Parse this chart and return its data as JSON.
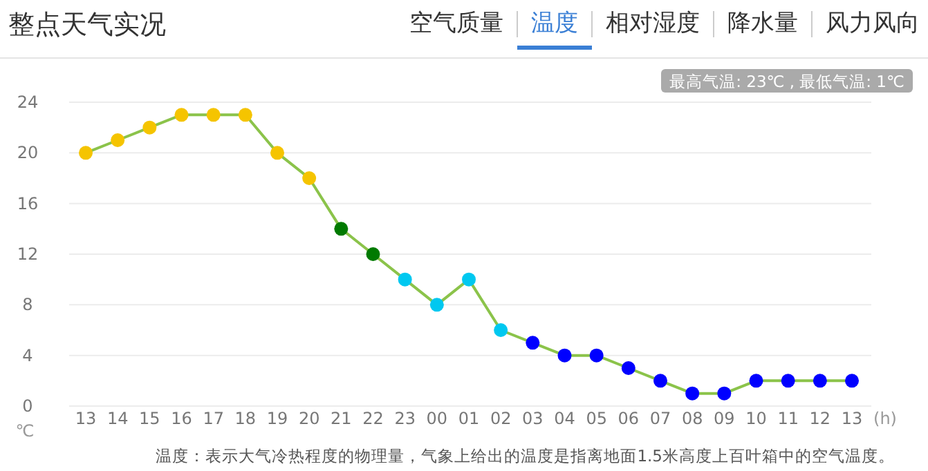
{
  "chart_data": {
    "type": "line",
    "title": "整点天气实况",
    "categories": [
      "13",
      "14",
      "15",
      "16",
      "17",
      "18",
      "19",
      "20",
      "21",
      "22",
      "23",
      "00",
      "01",
      "02",
      "03",
      "04",
      "05",
      "06",
      "07",
      "08",
      "09",
      "10",
      "11",
      "12",
      "13"
    ],
    "series": [
      {
        "color": "#8bc34a",
        "values": [
          20,
          21,
          22,
          23,
          23,
          23,
          20,
          18,
          14,
          12,
          10,
          8,
          10,
          6,
          5,
          4,
          4,
          3,
          2,
          1,
          1,
          2,
          2,
          2,
          2
        ],
        "colors": [
          "#f5c400",
          "#f5c400",
          "#f5c400",
          "#f5c400",
          "#f5c400",
          "#f5c400",
          "#f5c400",
          "#f5c400",
          "#007a00",
          "#007a00",
          "#00c8f0",
          "#00c8f0",
          "#00c8f0",
          "#00c8f0",
          "#0000ff",
          "#0000ff",
          "#0000ff",
          "#0000ff",
          "#0000ff",
          "#0000ff",
          "#0000ff",
          "#0000ff",
          "#0000ff",
          "#0000ff",
          "#0000ff"
        ]
      }
    ],
    "ylim": [
      0,
      24
    ],
    "yticks": [
      0,
      4,
      8,
      12,
      16,
      20,
      24
    ],
    "ylabel": "℃",
    "xlabel": "(h)",
    "grid": "y",
    "marker": "circle",
    "annotations": [
      "空气质量",
      "温度",
      "相对湿度",
      "降水量",
      "风力风向",
      "最高气温: 23℃ , 最低气温: 1℃",
      "温度：表示大气冷热程度的物理量，气象上给出的温度是指离地面1.5米高度上百叶箱中的空气温度。"
    ]
  }
}
